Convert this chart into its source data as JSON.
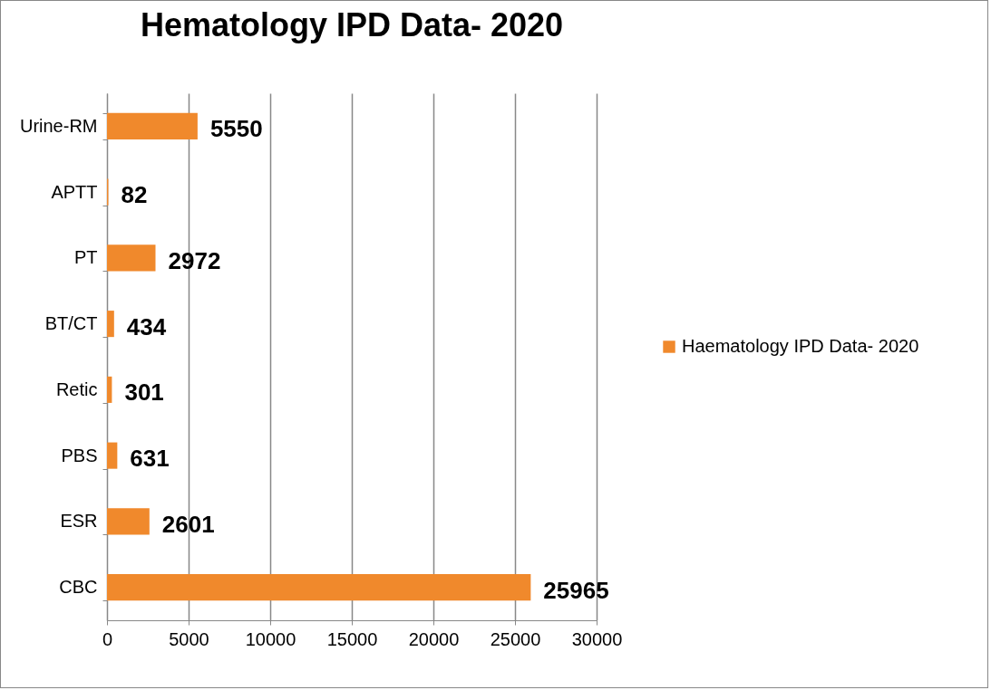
{
  "chart_data": {
    "type": "bar",
    "orientation": "horizontal",
    "title": "Hematology IPD Data- 2020",
    "categories": [
      "Urine-RM",
      "APTT",
      "PT",
      "BT/CT",
      "Retic",
      "PBS",
      "ESR",
      "CBC"
    ],
    "series": [
      {
        "name": "Haematology IPD Data- 2020",
        "color": "#f0892c",
        "values": [
          5550,
          82,
          2972,
          434,
          301,
          631,
          2601,
          25965
        ]
      }
    ],
    "xlim": [
      0,
      30000
    ],
    "xticks": [
      0,
      5000,
      10000,
      15000,
      20000,
      25000,
      30000
    ],
    "grid": "x",
    "legend": "right",
    "data_labels": true
  }
}
